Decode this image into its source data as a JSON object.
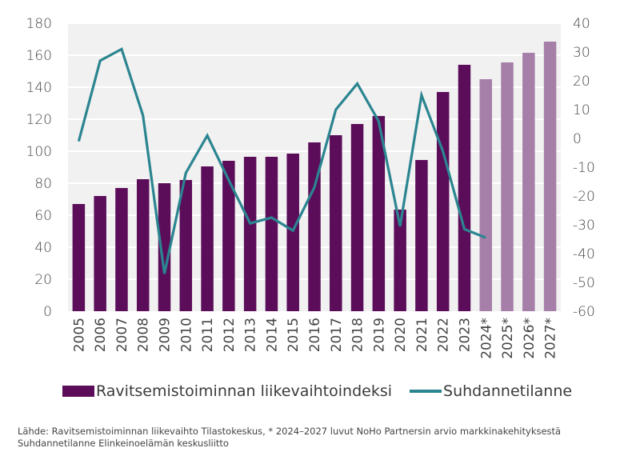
{
  "chart_data": {
    "type": "bar",
    "title": "",
    "categories": [
      "2005",
      "2006",
      "2007",
      "2008",
      "2009",
      "2010",
      "2011",
      "2012",
      "2013",
      "2014",
      "2015",
      "2016",
      "2017",
      "2018",
      "2019",
      "2020",
      "2021",
      "2022",
      "2023",
      "2024*",
      "2025*",
      "2026*",
      "2027*"
    ],
    "series": [
      {
        "name": "Ravitsemistoiminnan liikevaihtoindeksi",
        "type": "bar",
        "axis": "left",
        "color": "#5b0d5a",
        "forecast_color": "#a67fa8",
        "forecast_from_index": 19,
        "values": [
          67,
          72,
          77,
          82.5,
          80,
          82,
          90.5,
          94,
          96.5,
          96.5,
          98.5,
          105.5,
          110,
          117,
          122,
          63.5,
          94.5,
          137,
          154,
          145,
          155.5,
          161.5,
          168.5
        ]
      },
      {
        "name": "Suhdannetilanne",
        "type": "line",
        "axis": "right",
        "color": "#2b8590",
        "values": [
          -1,
          27,
          31,
          8,
          -47,
          -12,
          1,
          -14.5,
          -29.5,
          -27.5,
          -32,
          -17,
          10,
          19,
          6,
          -30.5,
          15,
          -4.5,
          -31.5,
          -34.5,
          null,
          null,
          null
        ]
      }
    ],
    "left_axis": {
      "ylim": [
        0,
        180
      ],
      "ticks": [
        0,
        20,
        40,
        60,
        80,
        100,
        120,
        140,
        160,
        180
      ]
    },
    "right_axis": {
      "ylim": [
        -60,
        40
      ],
      "ticks": [
        -60,
        -50,
        -40,
        -30,
        -20,
        -10,
        0,
        10,
        20,
        30,
        40
      ]
    },
    "xlabel": "",
    "ylabel": "",
    "grid": true,
    "legend_position": "bottom"
  },
  "legend": {
    "bar_label": "Ravitsemistoiminnan liikevaihtoindeksi",
    "line_label": "Suhdannetilanne"
  },
  "source": {
    "line1": "Lähde: Ravitsemistoiminnan liikevaihto Tilastokeskus, * 2024–2027 luvut NoHo Partnersin arvio markkinakehityksestä",
    "line2": "Suhdannetilanne Elinkeinoelämän keskusliitto"
  }
}
